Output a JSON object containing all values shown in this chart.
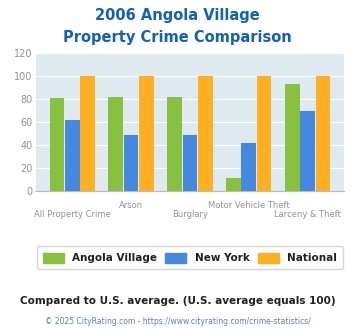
{
  "title_line1": "2006 Angola Village",
  "title_line2": "Property Crime Comparison",
  "categories": [
    "All Property Crime",
    "Arson",
    "Burglary",
    "Motor Vehicle Theft",
    "Larceny & Theft"
  ],
  "angola_village": [
    81,
    82,
    82,
    12,
    93
  ],
  "new_york": [
    62,
    49,
    49,
    42,
    70
  ],
  "national": [
    100,
    100,
    100,
    100,
    100
  ],
  "bar_color_angola": "#88c040",
  "bar_color_ny": "#4488e0",
  "bar_color_national": "#ffb020",
  "title_color": "#1060c0",
  "tick_color": "#9090a0",
  "label_color": "#9090a0",
  "subtitle": "Compared to U.S. average. (U.S. average equals 100)",
  "subtitle_color": "#202020",
  "footer": "© 2025 CityRating.com - https://www.cityrating.com/crime-statistics/",
  "footer_color": "#6080b0",
  "ylim": [
    0,
    120
  ],
  "yticks": [
    0,
    20,
    40,
    60,
    80,
    100,
    120
  ],
  "background_color": "#deeaf0",
  "fig_background": "#ffffff",
  "legend_labels": [
    "Angola Village",
    "New York",
    "National"
  ]
}
